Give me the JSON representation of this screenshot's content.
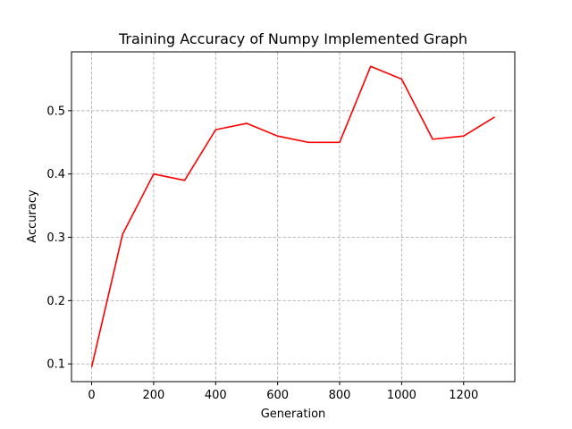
{
  "chart_data": {
    "type": "line",
    "title": "Training Accuracy of Numpy Implemented Graph",
    "xlabel": "Generation",
    "ylabel": "Accuracy",
    "xlim": [
      -65,
      1365
    ],
    "ylim": [
      0.072,
      0.593
    ],
    "xticks": [
      0,
      200,
      400,
      600,
      800,
      1000,
      1200
    ],
    "yticks": [
      0.1,
      0.2,
      0.3,
      0.4,
      0.5
    ],
    "grid": true,
    "series": [
      {
        "color": "#ff0000",
        "x": [
          0,
          100,
          200,
          300,
          400,
          500,
          600,
          700,
          800,
          900,
          1000,
          1100,
          1200,
          1300
        ],
        "y": [
          0.095,
          0.305,
          0.4,
          0.39,
          0.47,
          0.48,
          0.46,
          0.45,
          0.45,
          0.57,
          0.55,
          0.455,
          0.46,
          0.49
        ]
      }
    ]
  }
}
